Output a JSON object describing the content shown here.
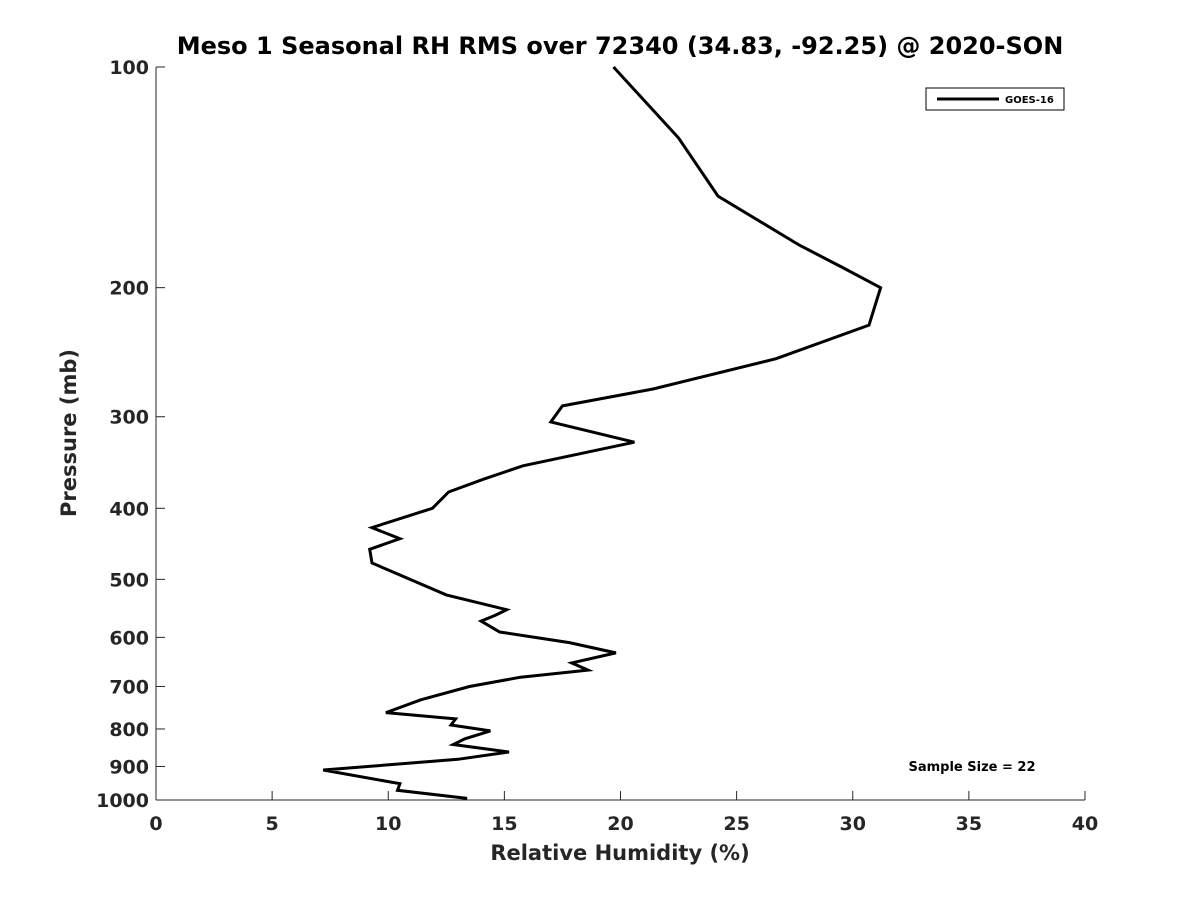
{
  "chart_data": {
    "type": "line",
    "title": "Meso 1 Seasonal RH RMS over 72340 (34.83, -92.25) @ 2020-SON",
    "xlabel": "Relative Humidity (%)",
    "ylabel": "Pressure (mb)",
    "xlim": [
      0,
      40
    ],
    "ylim": [
      100,
      1000
    ],
    "y_scale": "log",
    "y_reversed": true,
    "grid": false,
    "legend_position": "top-right",
    "x_ticks": [
      0,
      5,
      10,
      15,
      20,
      25,
      30,
      35,
      40
    ],
    "y_ticks": [
      100,
      200,
      300,
      400,
      500,
      600,
      700,
      800,
      900,
      1000
    ],
    "series": [
      {
        "name": "GOES-16",
        "color": "#000000",
        "points": [
          [
            19.7,
            100
          ],
          [
            22.5,
            125
          ],
          [
            24.2,
            150
          ],
          [
            27.7,
            175
          ],
          [
            29.6,
            188
          ],
          [
            31.2,
            200
          ],
          [
            30.7,
            225
          ],
          [
            26.7,
            250
          ],
          [
            21.4,
            275
          ],
          [
            17.5,
            290
          ],
          [
            17.0,
            305
          ],
          [
            20.6,
            325
          ],
          [
            15.8,
            350
          ],
          [
            14.1,
            365
          ],
          [
            12.6,
            380
          ],
          [
            11.9,
            400
          ],
          [
            9.3,
            425
          ],
          [
            10.5,
            440
          ],
          [
            9.2,
            455
          ],
          [
            9.3,
            475
          ],
          [
            12.5,
            525
          ],
          [
            15.1,
            550
          ],
          [
            14.6,
            560
          ],
          [
            14.0,
            570
          ],
          [
            14.8,
            590
          ],
          [
            17.8,
            610
          ],
          [
            19.8,
            630
          ],
          [
            17.9,
            650
          ],
          [
            18.6,
            665
          ],
          [
            15.7,
            680
          ],
          [
            13.5,
            700
          ],
          [
            11.4,
            730
          ],
          [
            9.9,
            760
          ],
          [
            12.9,
            775
          ],
          [
            12.7,
            790
          ],
          [
            14.4,
            805
          ],
          [
            13.3,
            825
          ],
          [
            12.8,
            840
          ],
          [
            15.2,
            860
          ],
          [
            13.0,
            880
          ],
          [
            7.2,
            910
          ],
          [
            10.5,
            950
          ],
          [
            10.4,
            970
          ],
          [
            13.4,
            995
          ]
        ]
      }
    ],
    "annotation": "Sample Size = 22"
  }
}
